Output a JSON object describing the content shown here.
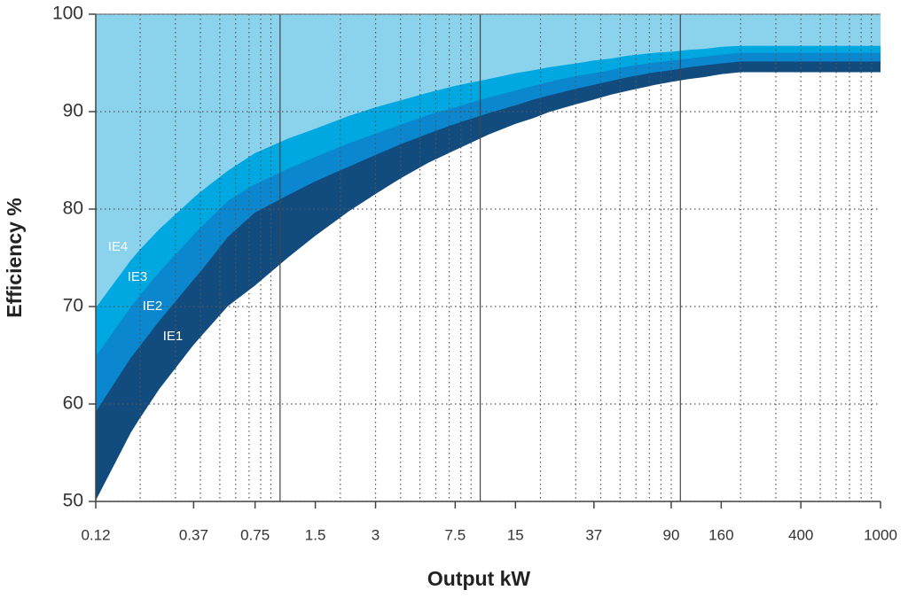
{
  "chart_data": {
    "type": "area",
    "x_label": "Output kW",
    "y_label": "Efficiency %",
    "x": [
      0.12,
      0.18,
      0.2,
      0.25,
      0.37,
      0.4,
      0.55,
      0.75,
      1.1,
      1.5,
      2.2,
      3,
      4,
      5.5,
      7.5,
      11,
      15,
      18.5,
      22,
      30,
      37,
      45,
      55,
      75,
      90,
      110,
      132,
      160,
      200,
      1000
    ],
    "series": [
      {
        "name": "IE1",
        "color": "#ffffff",
        "values": [
          50.0,
          57.0,
          58.5,
          61.5,
          66.0,
          66.8,
          70.0,
          72.1,
          75.0,
          77.2,
          79.7,
          81.5,
          83.1,
          84.7,
          86.0,
          87.6,
          88.7,
          89.3,
          89.9,
          90.7,
          91.2,
          91.7,
          92.1,
          92.7,
          93.0,
          93.3,
          93.5,
          93.8,
          94.0,
          94.0
        ]
      },
      {
        "name": "IE2",
        "color": "#124c7e",
        "values": [
          59.1,
          64.7,
          65.9,
          68.5,
          72.7,
          73.5,
          77.1,
          79.6,
          81.4,
          82.8,
          84.3,
          85.5,
          86.6,
          87.7,
          88.7,
          89.8,
          90.6,
          91.2,
          91.6,
          92.3,
          92.7,
          93.1,
          93.5,
          94.0,
          94.2,
          94.5,
          94.7,
          94.9,
          95.1,
          95.1
        ]
      },
      {
        "name": "IE3",
        "color": "#0a87cf",
        "values": [
          64.8,
          69.9,
          71.1,
          73.5,
          77.3,
          78.0,
          80.8,
          82.5,
          84.1,
          85.3,
          86.7,
          87.7,
          88.6,
          89.6,
          90.4,
          91.4,
          92.1,
          92.6,
          93.0,
          93.6,
          93.9,
          94.2,
          94.6,
          95.0,
          95.2,
          95.4,
          95.6,
          95.8,
          96.0,
          96.0
        ]
      },
      {
        "name": "IE4",
        "color": "#00a8e2",
        "values": [
          69.8,
          74.7,
          75.8,
          77.9,
          81.1,
          81.7,
          83.9,
          85.7,
          87.2,
          88.2,
          89.5,
          90.4,
          91.1,
          91.9,
          92.6,
          93.3,
          93.9,
          94.2,
          94.5,
          94.9,
          95.2,
          95.4,
          95.7,
          96.0,
          96.1,
          96.3,
          96.4,
          96.6,
          96.7,
          96.7
        ]
      }
    ],
    "plot_color": "#8bd3ec",
    "xlim": [
      0.12,
      1000
    ],
    "xticks": [
      0.12,
      0.37,
      0.75,
      1.5,
      3,
      7.5,
      15,
      37,
      90,
      160,
      400,
      1000
    ],
    "ylim": [
      50,
      100
    ],
    "yticks": [
      50,
      60,
      70,
      80,
      90,
      100
    ],
    "log_x": true,
    "grid": true
  }
}
